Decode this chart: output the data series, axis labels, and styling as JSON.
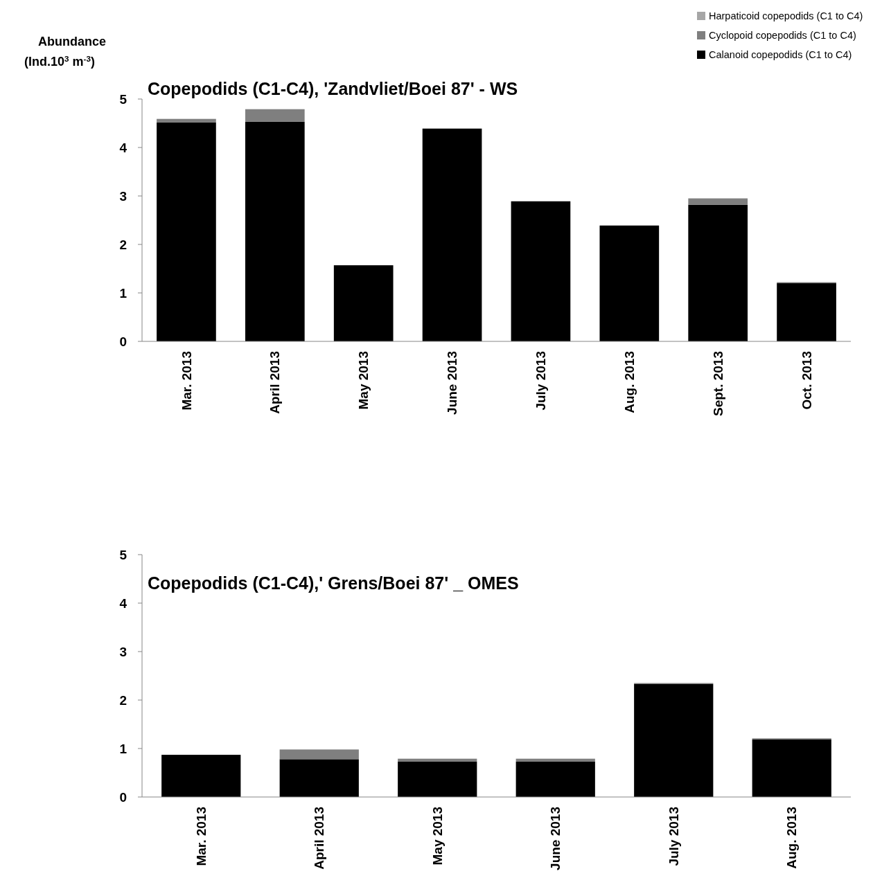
{
  "chart_data": [
    {
      "type": "bar",
      "title": "Copepodids (C1-C4), 'Zandvliet/Boei 87' - WS",
      "ylabel": "Abundance (Ind.10$^{3}$ m$^{-3}$)",
      "stacked": true,
      "legend": "top right",
      "grid": false,
      "categories": [
        "Mar. 2013",
        "April 2013",
        "May 2013",
        "June 2013",
        "July 2013",
        "Aug. 2013",
        "Sept. 2013",
        "Oct. 2013"
      ],
      "series": [
        {
          "name": "Calanoid copepodids (C1 to C4)",
          "color": "#000000",
          "values": [
            4.52,
            4.53,
            1.57,
            4.39,
            2.89,
            2.39,
            2.82,
            1.2
          ]
        },
        {
          "name": "Cyclopoid copepodids (C1 to C4)",
          "color": "#7f7f7f",
          "values": [
            0.07,
            0.26,
            0,
            0,
            0,
            0,
            0.13,
            0.02
          ]
        },
        {
          "name": "Harpaticoid copepodids (C1 to C4)",
          "color": "#a6a6a6",
          "values": [
            0,
            0,
            0,
            0,
            0,
            0,
            0,
            0
          ]
        }
      ],
      "ylim": [
        0,
        5
      ],
      "yticks": [
        0,
        1,
        2,
        3,
        4,
        5
      ]
    },
    {
      "type": "bar",
      "title": "Copepodids (C1-C4),' Grens/Boei 87' _ OMES",
      "stacked": true,
      "grid": false,
      "categories": [
        "Mar. 2013",
        "April 2013",
        "May 2013",
        "June 2013",
        "July 2013",
        "Aug. 2013"
      ],
      "series": [
        {
          "color": "#000000",
          "values": [
            0.87,
            0.78,
            0.73,
            0.73,
            2.33,
            1.19
          ]
        },
        {
          "color": "#7f7f7f",
          "values": [
            0,
            0.2,
            0.06,
            0.06,
            0.02,
            0.02
          ]
        }
      ],
      "ylim": [
        0,
        5
      ],
      "yticks": [
        0,
        1,
        2,
        3,
        4,
        5
      ]
    }
  ]
}
